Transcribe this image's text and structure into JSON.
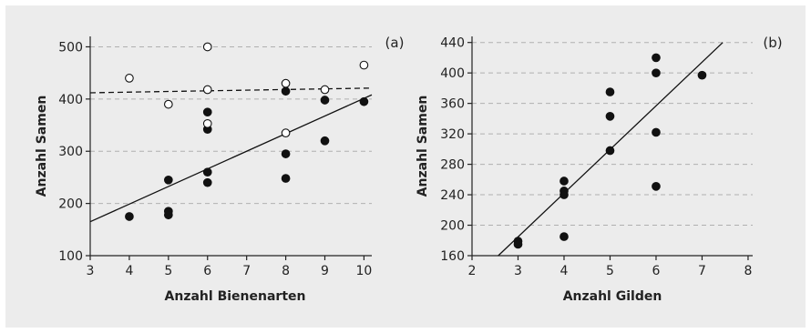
{
  "chart_data": [
    {
      "type": "scatter",
      "panel_label": "(a)",
      "xlabel": "Anzahl Bienenarten",
      "ylabel": "Anzahl Samen",
      "xlim": [
        3,
        10.2
      ],
      "ylim": [
        100,
        520
      ],
      "xticks": [
        3,
        4,
        5,
        6,
        7,
        8,
        9,
        10
      ],
      "yticks": [
        100,
        200,
        300,
        400,
        500
      ],
      "grid": "horizontal dashed",
      "series": [
        {
          "marker": "filled-circle",
          "points": [
            {
              "x": 4,
              "y": 175
            },
            {
              "x": 5,
              "y": 245
            },
            {
              "x": 5,
              "y": 185
            },
            {
              "x": 5,
              "y": 178
            },
            {
              "x": 6,
              "y": 375
            },
            {
              "x": 6,
              "y": 342
            },
            {
              "x": 6,
              "y": 260
            },
            {
              "x": 6,
              "y": 240
            },
            {
              "x": 8,
              "y": 415
            },
            {
              "x": 8,
              "y": 295
            },
            {
              "x": 8,
              "y": 248
            },
            {
              "x": 9,
              "y": 398
            },
            {
              "x": 9,
              "y": 320
            },
            {
              "x": 10,
              "y": 395
            }
          ],
          "trend": {
            "style": "solid",
            "from": {
              "x": 3,
              "y": 165
            },
            "to": {
              "x": 10.2,
              "y": 408
            }
          }
        },
        {
          "marker": "open-circle",
          "points": [
            {
              "x": 4,
              "y": 440
            },
            {
              "x": 5,
              "y": 390
            },
            {
              "x": 6,
              "y": 500
            },
            {
              "x": 6,
              "y": 418
            },
            {
              "x": 6,
              "y": 353
            },
            {
              "x": 8,
              "y": 430
            },
            {
              "x": 8,
              "y": 335
            },
            {
              "x": 9,
              "y": 418
            },
            {
              "x": 10,
              "y": 465
            }
          ],
          "trend": {
            "style": "dashed",
            "from": {
              "x": 3,
              "y": 412
            },
            "to": {
              "x": 10.2,
              "y": 421
            }
          }
        }
      ]
    },
    {
      "type": "scatter",
      "panel_label": "(b)",
      "xlabel": "Anzahl Gilden",
      "ylabel": "Anzahl Samen",
      "xlim": [
        2,
        8.1
      ],
      "ylim": [
        160,
        448
      ],
      "xticks": [
        2,
        3,
        4,
        5,
        6,
        7,
        8
      ],
      "yticks": [
        160,
        200,
        240,
        280,
        320,
        360,
        400,
        440
      ],
      "grid": "horizontal dashed",
      "series": [
        {
          "marker": "filled-circle",
          "points": [
            {
              "x": 3,
              "y": 179
            },
            {
              "x": 3,
              "y": 175
            },
            {
              "x": 4,
              "y": 258
            },
            {
              "x": 4,
              "y": 245
            },
            {
              "x": 4,
              "y": 240
            },
            {
              "x": 4,
              "y": 185
            },
            {
              "x": 5,
              "y": 375
            },
            {
              "x": 5,
              "y": 343
            },
            {
              "x": 5,
              "y": 298
            },
            {
              "x": 6,
              "y": 420
            },
            {
              "x": 6,
              "y": 400
            },
            {
              "x": 6,
              "y": 322
            },
            {
              "x": 6,
              "y": 251
            },
            {
              "x": 7,
              "y": 397
            }
          ],
          "trend": {
            "style": "solid",
            "from": {
              "x": 2.57,
              "y": 160
            },
            "to": {
              "x": 7.45,
              "y": 440
            }
          }
        }
      ]
    }
  ]
}
